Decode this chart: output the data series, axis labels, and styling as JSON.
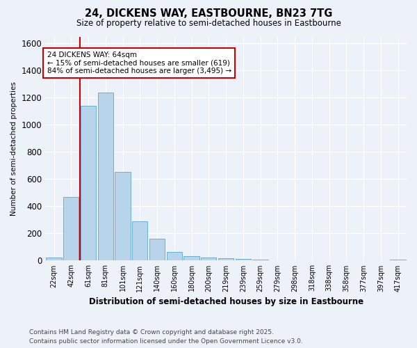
{
  "title": "24, DICKENS WAY, EASTBOURNE, BN23 7TG",
  "subtitle": "Size of property relative to semi-detached houses in Eastbourne",
  "xlabel": "Distribution of semi-detached houses by size in Eastbourne",
  "ylabel": "Number of semi-detached properties",
  "footnote1": "Contains HM Land Registry data © Crown copyright and database right 2025.",
  "footnote2": "Contains public sector information licensed under the Open Government Licence v3.0.",
  "annotation_title": "24 DICKENS WAY: 64sqm",
  "annotation_line2": "← 15% of semi-detached houses are smaller (619)",
  "annotation_line3": "84% of semi-detached houses are larger (3,495) →",
  "bar_color": "#b8d4ea",
  "bar_edge_color": "#6aaed6",
  "vline_color": "#cc0000",
  "background_color": "#edf2f9",
  "grid_color": "#ffffff",
  "categories": [
    "22sqm",
    "42sqm",
    "61sqm",
    "81sqm",
    "101sqm",
    "121sqm",
    "140sqm",
    "160sqm",
    "180sqm",
    "200sqm",
    "219sqm",
    "239sqm",
    "259sqm",
    "279sqm",
    "298sqm",
    "318sqm",
    "338sqm",
    "358sqm",
    "377sqm",
    "397sqm",
    "417sqm"
  ],
  "values": [
    25,
    470,
    1140,
    1235,
    655,
    290,
    160,
    65,
    35,
    25,
    20,
    10,
    5,
    4,
    4,
    2,
    1,
    1,
    1,
    1,
    8
  ],
  "ylim": [
    0,
    1650
  ],
  "yticks": [
    0,
    200,
    400,
    600,
    800,
    1000,
    1200,
    1400,
    1600
  ],
  "vline_x_index": 1.5
}
